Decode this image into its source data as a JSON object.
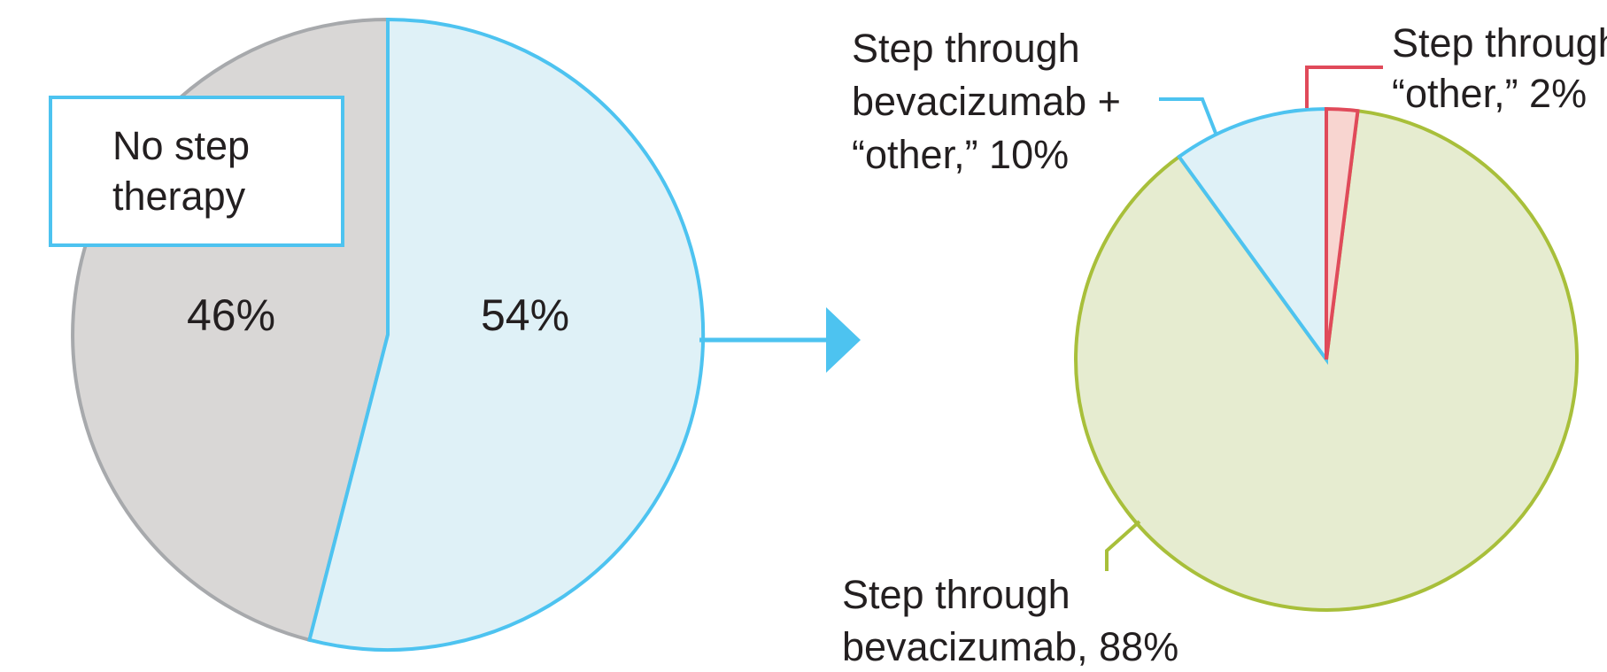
{
  "colors": {
    "no_step_fill": "#d9d7d6",
    "no_step_stroke": "#a7a9ac",
    "step_fill": "#dff1f7",
    "step_stroke": "#4dc3f0",
    "beva_fill": "#e6ecd0",
    "beva_stroke": "#a8bf3a",
    "other_fill": "#f8d5d0",
    "other_stroke": "#e04a5a",
    "arrow": "#4dc3f0",
    "text": "#231f20"
  },
  "box_label": [
    "No step",
    "therapy"
  ],
  "chart_data": [
    {
      "type": "pie",
      "slices": [
        {
          "key": "step",
          "value": 54,
          "label": "54%"
        },
        {
          "key": "no_step",
          "value": 46,
          "label": "46%"
        }
      ]
    },
    {
      "type": "pie",
      "slices": [
        {
          "key": "other",
          "value": 2,
          "label_lines": [
            "Step through",
            "“other,” 2%"
          ]
        },
        {
          "key": "beva",
          "value": 88,
          "label_lines": [
            "Step through",
            "bevacizumab, 88%"
          ]
        },
        {
          "key": "beva_other",
          "value": 10,
          "label_lines": [
            "Step through",
            "bevacizumab +",
            "“other,” 10%"
          ]
        }
      ]
    }
  ]
}
